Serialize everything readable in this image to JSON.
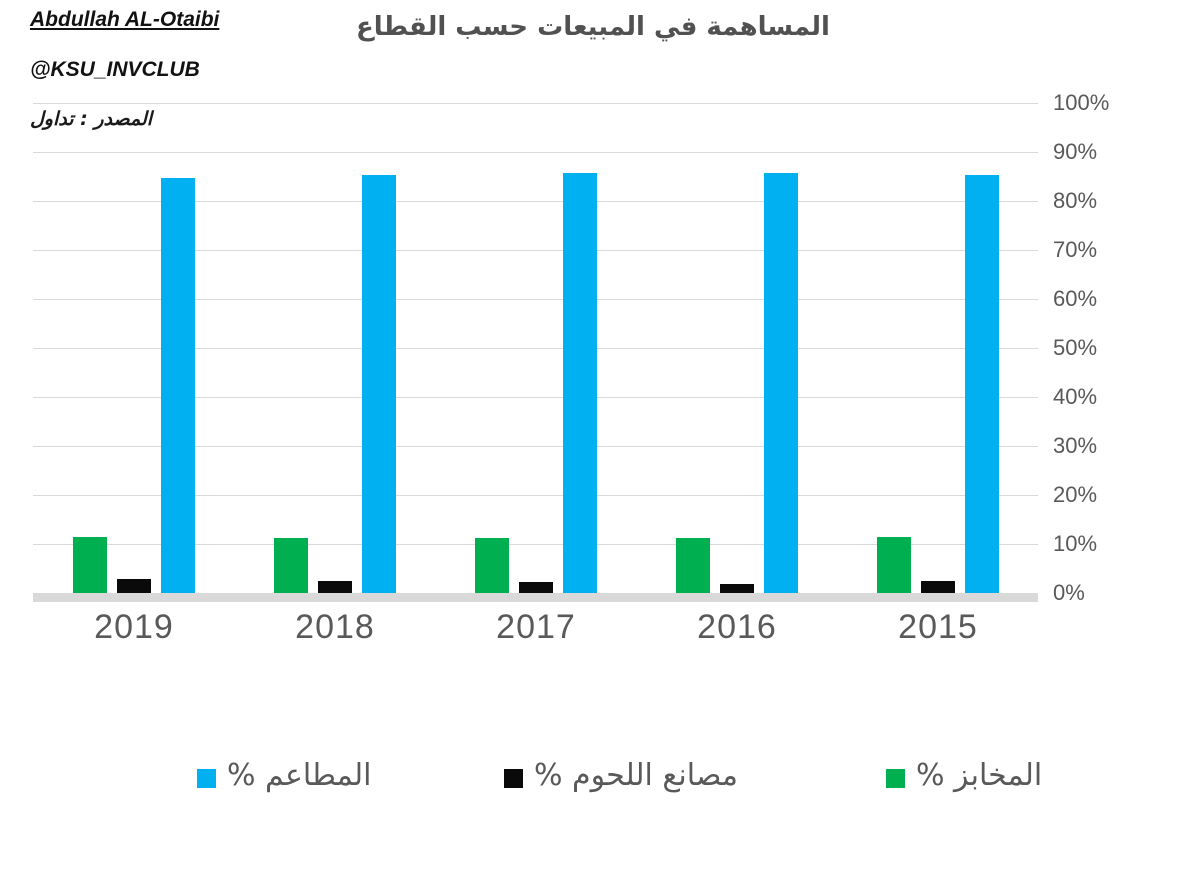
{
  "header": {
    "author": "Abdullah AL-Otaibi",
    "handle": "@KSU_INVCLUB",
    "source": "المصدر : تداول"
  },
  "chart_data": {
    "type": "bar",
    "title": "المساهمة في المبيعات حسب القطاع",
    "xlabel": "",
    "ylabel": "",
    "categories": [
      "2019",
      "2018",
      "2017",
      "2016",
      "2015"
    ],
    "series": [
      {
        "key": "bakeries",
        "name": "المخابز %",
        "color": "#00B050",
        "values": [
          11.4,
          11.2,
          11.2,
          11.2,
          11.4
        ]
      },
      {
        "key": "meat-factories",
        "name": "مصانع اللحوم %",
        "color": "#0a0a0a",
        "values": [
          2.8,
          2.5,
          2.2,
          1.8,
          2.5
        ]
      },
      {
        "key": "restaurants",
        "name": "المطاعم %",
        "color": "#00B0F0",
        "values": [
          84.6,
          85.4,
          85.7,
          85.8,
          85.4
        ]
      }
    ],
    "ylim": [
      0,
      100
    ],
    "ytick_step": 10,
    "ytick_labels": [
      "0%",
      "10%",
      "20%",
      "30%",
      "40%",
      "50%",
      "60%",
      "70%",
      "80%",
      "90%",
      "100%"
    ],
    "grid": true,
    "yaxis_side": "right",
    "legend_position": "bottom",
    "legend": [
      {
        "key": "restaurants",
        "label": "المطاعم %",
        "color": "#00B0F0"
      },
      {
        "key": "meat-factories",
        "label": "مصانع اللحوم %",
        "color": "#0a0a0a"
      },
      {
        "key": "bakeries",
        "label": "المخابز %",
        "color": "#00B050"
      }
    ]
  },
  "colors": {
    "gridline": "#d9d9d9",
    "baseline": "#d9d9d9",
    "axis_text": "#595959",
    "title_text": "#515151"
  }
}
